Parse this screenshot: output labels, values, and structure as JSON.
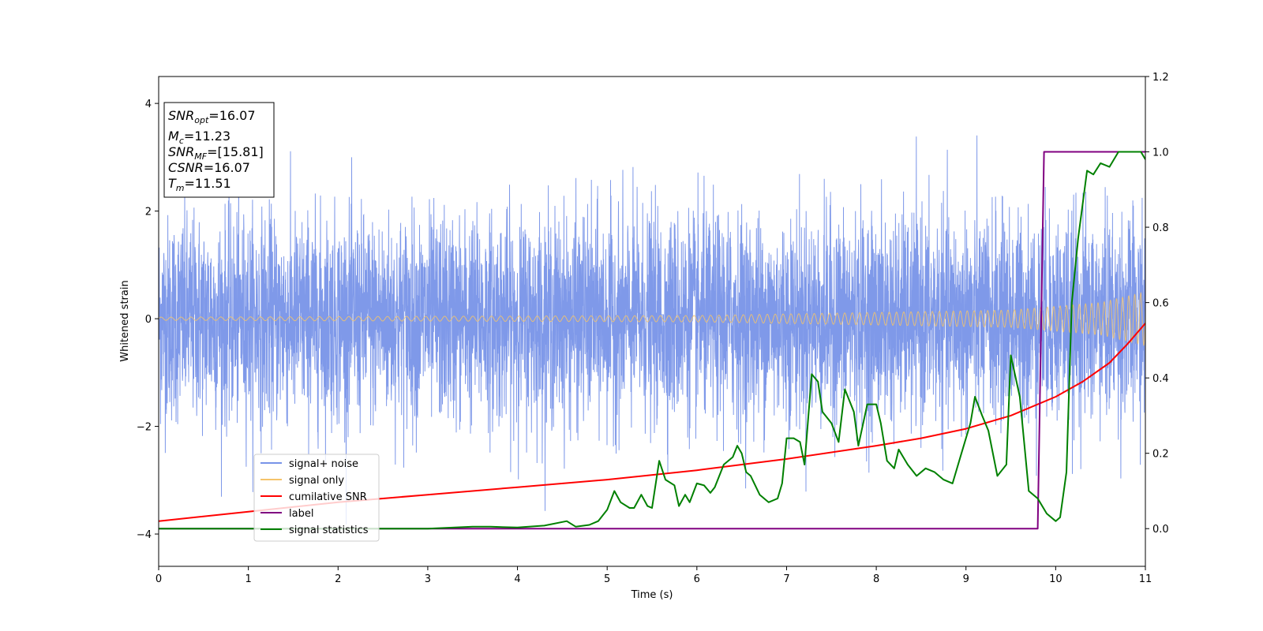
{
  "chart_data": {
    "type": "line",
    "xlabel": "Time (s)",
    "ylabel": "Whitened strain",
    "xlim": [
      0,
      11
    ],
    "ylim_left": [
      -4.6,
      4.5
    ],
    "ylim_right": [
      -0.1,
      1.2
    ],
    "x_ticks": [
      "0",
      "1",
      "2",
      "3",
      "4",
      "5",
      "6",
      "7",
      "8",
      "9",
      "10",
      "11"
    ],
    "y_left_ticks": [
      "−4",
      "−2",
      "0",
      "2",
      "4"
    ],
    "y_right_ticks": [
      "0.0",
      "0.2",
      "0.4",
      "0.6",
      "0.8",
      "1.0",
      "1.2"
    ],
    "grid": false,
    "legend_position": "lower-left",
    "annotation": {
      "lines": [
        {
          "name": "SNR",
          "sub": "opt",
          "value": "=16.07"
        },
        {
          "name": "M",
          "sub": "c",
          "value": "=11.23"
        },
        {
          "name": "SNR",
          "sub": "MF",
          "value": "=[15.81]"
        },
        {
          "name": "CSNR",
          "sub": "",
          "value": "=16.07"
        },
        {
          "name": "T",
          "sub": "m",
          "value": "=11.51"
        }
      ]
    },
    "series": [
      {
        "name": "signal+ noise",
        "axis": "left",
        "color": "#7893e8",
        "description_values": {
          "typical_range": [
            -2.0,
            2.0
          ],
          "max": 4.1,
          "min": -4.15
        }
      },
      {
        "name": "signal only",
        "axis": "left",
        "color": "#f5c46a",
        "envelope": {
          "x": [
            0,
            6,
            9.5,
            10.5,
            11
          ],
          "amplitude": [
            0.03,
            0.06,
            0.16,
            0.3,
            0.5
          ]
        }
      },
      {
        "name": "cumilative SNR",
        "axis": "right",
        "color": "#ff0000",
        "x": [
          0,
          1,
          2,
          3,
          4,
          5,
          6,
          7,
          8,
          8.5,
          9,
          9.5,
          10,
          10.3,
          10.6,
          10.8,
          11
        ],
        "y": [
          0.02,
          0.045,
          0.07,
          0.09,
          0.11,
          0.13,
          0.155,
          0.185,
          0.22,
          0.24,
          0.265,
          0.3,
          0.35,
          0.39,
          0.44,
          0.49,
          0.545
        ]
      },
      {
        "name": "label",
        "axis": "right",
        "color": "#800080",
        "x": [
          0,
          9.8,
          9.87,
          11
        ],
        "y": [
          0.0,
          0.0,
          1.0,
          1.0
        ]
      },
      {
        "name": "signal statistics",
        "axis": "right",
        "color": "#008000",
        "x": [
          0,
          0.5,
          1,
          1.5,
          2,
          2.5,
          3,
          3.5,
          3.7,
          4,
          4.3,
          4.55,
          4.65,
          4.8,
          4.9,
          5.0,
          5.08,
          5.15,
          5.25,
          5.3,
          5.38,
          5.45,
          5.5,
          5.58,
          5.65,
          5.75,
          5.8,
          5.87,
          5.92,
          6.0,
          6.08,
          6.15,
          6.2,
          6.3,
          6.4,
          6.45,
          6.5,
          6.55,
          6.6,
          6.7,
          6.8,
          6.9,
          6.95,
          7.0,
          7.08,
          7.15,
          7.2,
          7.28,
          7.35,
          7.4,
          7.5,
          7.58,
          7.65,
          7.75,
          7.8,
          7.9,
          8.0,
          8.05,
          8.12,
          8.2,
          8.25,
          8.35,
          8.45,
          8.55,
          8.65,
          8.75,
          8.85,
          8.95,
          9.05,
          9.1,
          9.18,
          9.25,
          9.35,
          9.45,
          9.5,
          9.6,
          9.7,
          9.8,
          9.9,
          10.0,
          10.05,
          10.12,
          10.18,
          10.25,
          10.35,
          10.42,
          10.5,
          10.6,
          10.7,
          10.85,
          10.95,
          11
        ],
        "y": [
          0.0,
          0.0,
          0.0,
          0.0,
          0.0,
          0.0,
          0.0,
          0.005,
          0.005,
          0.003,
          0.008,
          0.02,
          0.005,
          0.01,
          0.02,
          0.05,
          0.1,
          0.07,
          0.055,
          0.055,
          0.09,
          0.06,
          0.055,
          0.18,
          0.13,
          0.115,
          0.06,
          0.09,
          0.07,
          0.12,
          0.115,
          0.095,
          0.11,
          0.17,
          0.19,
          0.22,
          0.2,
          0.15,
          0.14,
          0.09,
          0.07,
          0.08,
          0.12,
          0.24,
          0.24,
          0.23,
          0.17,
          0.41,
          0.39,
          0.31,
          0.28,
          0.23,
          0.37,
          0.31,
          0.22,
          0.33,
          0.33,
          0.28,
          0.18,
          0.16,
          0.21,
          0.17,
          0.14,
          0.16,
          0.15,
          0.13,
          0.12,
          0.2,
          0.28,
          0.35,
          0.3,
          0.26,
          0.14,
          0.17,
          0.46,
          0.35,
          0.1,
          0.08,
          0.04,
          0.02,
          0.03,
          0.15,
          0.6,
          0.77,
          0.95,
          0.94,
          0.97,
          0.96,
          1.0,
          1.0,
          1.0,
          0.98
        ]
      }
    ]
  }
}
